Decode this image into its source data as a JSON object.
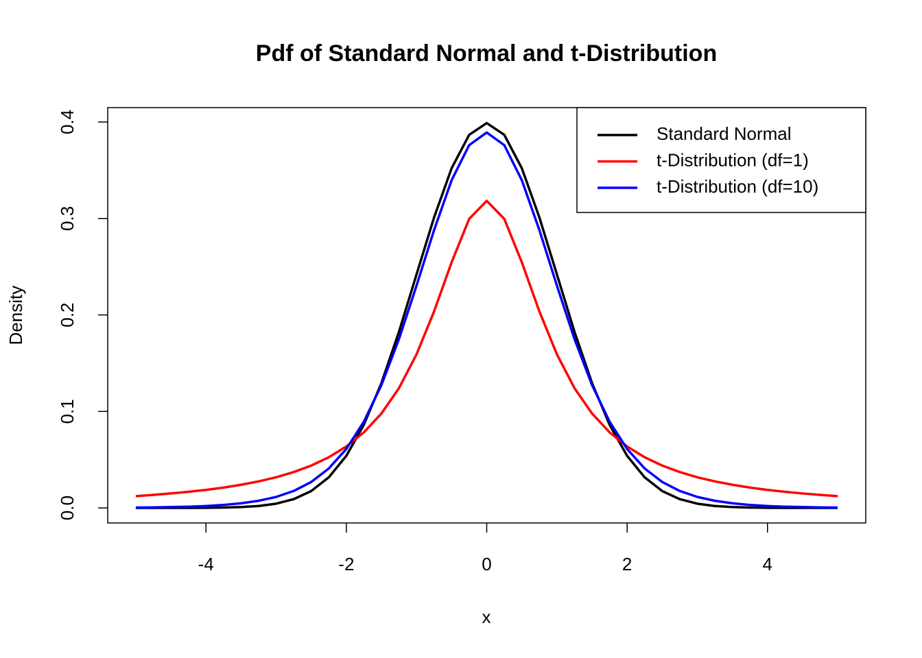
{
  "chart_data": {
    "type": "line",
    "title": "Pdf of Standard Normal and t-Distribution",
    "x_label": "x",
    "y_label": "Density",
    "x": [
      -5,
      -4.75,
      -4.5,
      -4.25,
      -4,
      -3.75,
      -3.5,
      -3.25,
      -3,
      -2.75,
      -2.5,
      -2.25,
      -2,
      -1.75,
      -1.5,
      -1.25,
      -1,
      -0.75,
      -0.5,
      -0.25,
      0,
      0.25,
      0.5,
      0.75,
      1,
      1.25,
      1.5,
      1.75,
      2,
      2.25,
      2.5,
      2.75,
      3,
      3.25,
      3.5,
      3.75,
      4,
      4.25,
      4.5,
      4.75,
      5
    ],
    "series": [
      {
        "name": "Standard Normal",
        "color": "#000000",
        "values": [
          0.0,
          0.0,
          0.0,
          0.0,
          0.0001,
          0.0004,
          0.0009,
          0.002,
          0.0044,
          0.0091,
          0.0175,
          0.0317,
          0.054,
          0.0863,
          0.1295,
          0.1826,
          0.242,
          0.3011,
          0.3521,
          0.3867,
          0.3989,
          0.3867,
          0.3521,
          0.3011,
          0.242,
          0.1826,
          0.1295,
          0.0863,
          0.054,
          0.0317,
          0.0175,
          0.0091,
          0.0044,
          0.002,
          0.0009,
          0.0004,
          0.0001,
          0.0,
          0.0,
          0.0,
          0.0
        ]
      },
      {
        "name": "t-Distribution (df=1)",
        "color": "#ff0000",
        "values": [
          0.0122,
          0.0135,
          0.015,
          0.0167,
          0.0187,
          0.0211,
          0.024,
          0.0275,
          0.0318,
          0.0372,
          0.0439,
          0.0525,
          0.0637,
          0.0784,
          0.0979,
          0.1242,
          0.1592,
          0.2037,
          0.2546,
          0.2996,
          0.3183,
          0.2996,
          0.2546,
          0.2037,
          0.1592,
          0.1242,
          0.0979,
          0.0784,
          0.0637,
          0.0525,
          0.0439,
          0.0372,
          0.0318,
          0.0275,
          0.024,
          0.0211,
          0.0187,
          0.0167,
          0.015,
          0.0135,
          0.0122
        ]
      },
      {
        "name": "t-Distribution (df=10)",
        "color": "#0000ff",
        "values": [
          0.0004,
          0.0006,
          0.0009,
          0.0013,
          0.002,
          0.0031,
          0.0048,
          0.0074,
          0.0114,
          0.0176,
          0.0269,
          0.0409,
          0.0611,
          0.0895,
          0.1274,
          0.1751,
          0.2304,
          0.288,
          0.3397,
          0.376,
          0.3891,
          0.376,
          0.3397,
          0.288,
          0.2304,
          0.1751,
          0.1274,
          0.0895,
          0.0611,
          0.0409,
          0.0269,
          0.0176,
          0.0114,
          0.0074,
          0.0048,
          0.0031,
          0.002,
          0.0013,
          0.0009,
          0.0006,
          0.0004
        ]
      }
    ],
    "xlim": [
      -5.4,
      5.4
    ],
    "ylim": [
      -0.0156,
      0.4149
    ],
    "xticks": [
      -4,
      -2,
      0,
      2,
      4
    ],
    "yticks": [
      {
        "value": 0,
        "label": "0.0"
      },
      0.1,
      0.2,
      0.3,
      0.4
    ],
    "legend": "topright"
  }
}
